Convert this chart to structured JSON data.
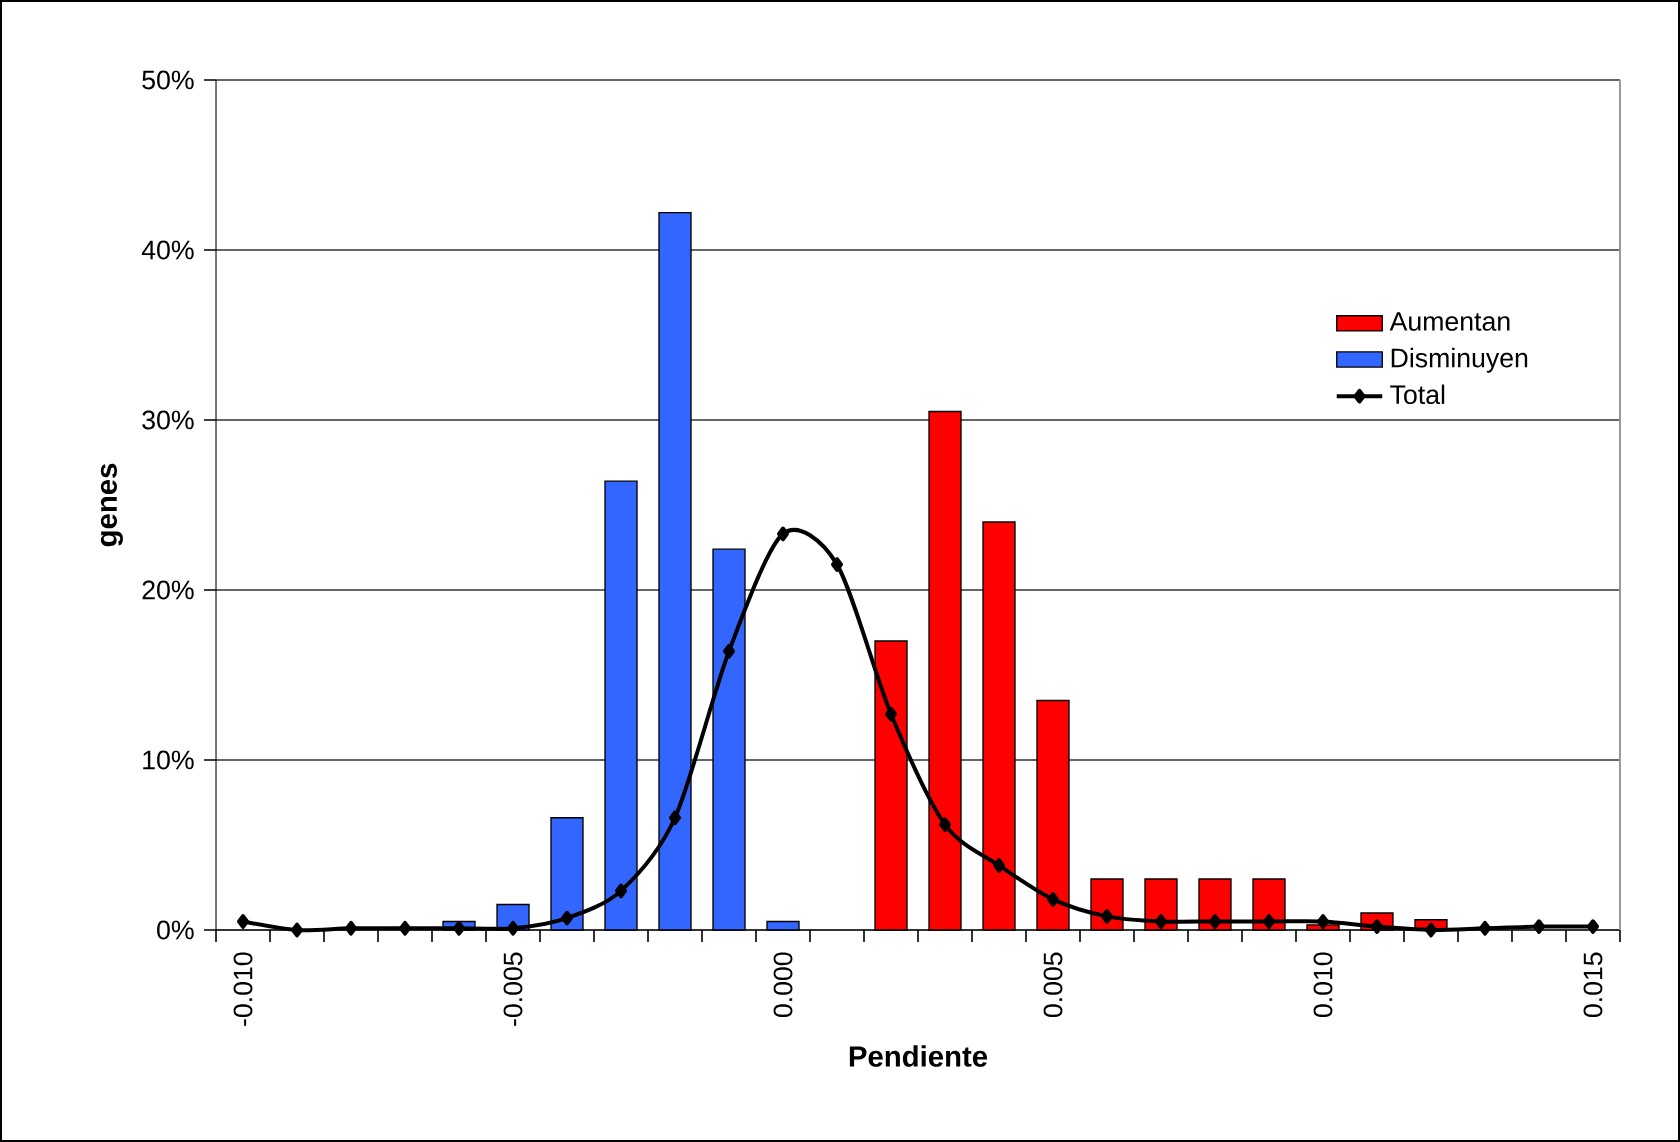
{
  "chart_data": {
    "type": "bar",
    "xlabel": "Pendiente",
    "ylabel": "genes",
    "categories": [
      "-0.010",
      null,
      null,
      null,
      null,
      "-0.005",
      null,
      null,
      null,
      null,
      "0.000",
      null,
      null,
      null,
      null,
      "0.005",
      null,
      null,
      null,
      null,
      "0.010",
      null,
      null,
      null,
      null,
      "0.015"
    ],
    "series": [
      {
        "name": "Aumentan",
        "color": "#ff0000",
        "values": [
          null,
          null,
          null,
          null,
          null,
          null,
          null,
          null,
          null,
          null,
          null,
          null,
          17.0,
          30.5,
          24.0,
          13.5,
          3.0,
          3.0,
          3.0,
          3.0,
          0.3,
          1.0,
          0.6,
          null,
          null,
          null
        ]
      },
      {
        "name": "Disminuyen",
        "color": "#3366ff",
        "values": [
          null,
          null,
          null,
          null,
          0.5,
          1.5,
          6.6,
          26.4,
          42.2,
          22.4,
          0.5,
          null,
          null,
          null,
          null,
          null,
          null,
          null,
          null,
          null,
          null,
          null,
          null,
          null,
          null,
          null
        ]
      },
      {
        "name": "Total",
        "type": "line",
        "color": "#000000",
        "marker": "diamond",
        "values": [
          0.5,
          0.0,
          0.1,
          0.1,
          0.1,
          0.1,
          0.7,
          2.3,
          6.6,
          16.4,
          23.3,
          21.5,
          12.7,
          6.2,
          3.8,
          1.8,
          0.8,
          0.5,
          0.5,
          0.5,
          0.5,
          0.2,
          0.0,
          0.1,
          0.2,
          0.2
        ]
      }
    ],
    "ylim": [
      0,
      50
    ],
    "yticks": [
      {
        "value": 0,
        "label": "0%"
      },
      {
        "value": 10,
        "label": "10%"
      },
      {
        "value": 20,
        "label": "20%"
      },
      {
        "value": 30,
        "label": "30%"
      },
      {
        "value": 40,
        "label": "40%"
      },
      {
        "value": 50,
        "label": "50%"
      }
    ],
    "grid": "y",
    "legend": "top right"
  }
}
